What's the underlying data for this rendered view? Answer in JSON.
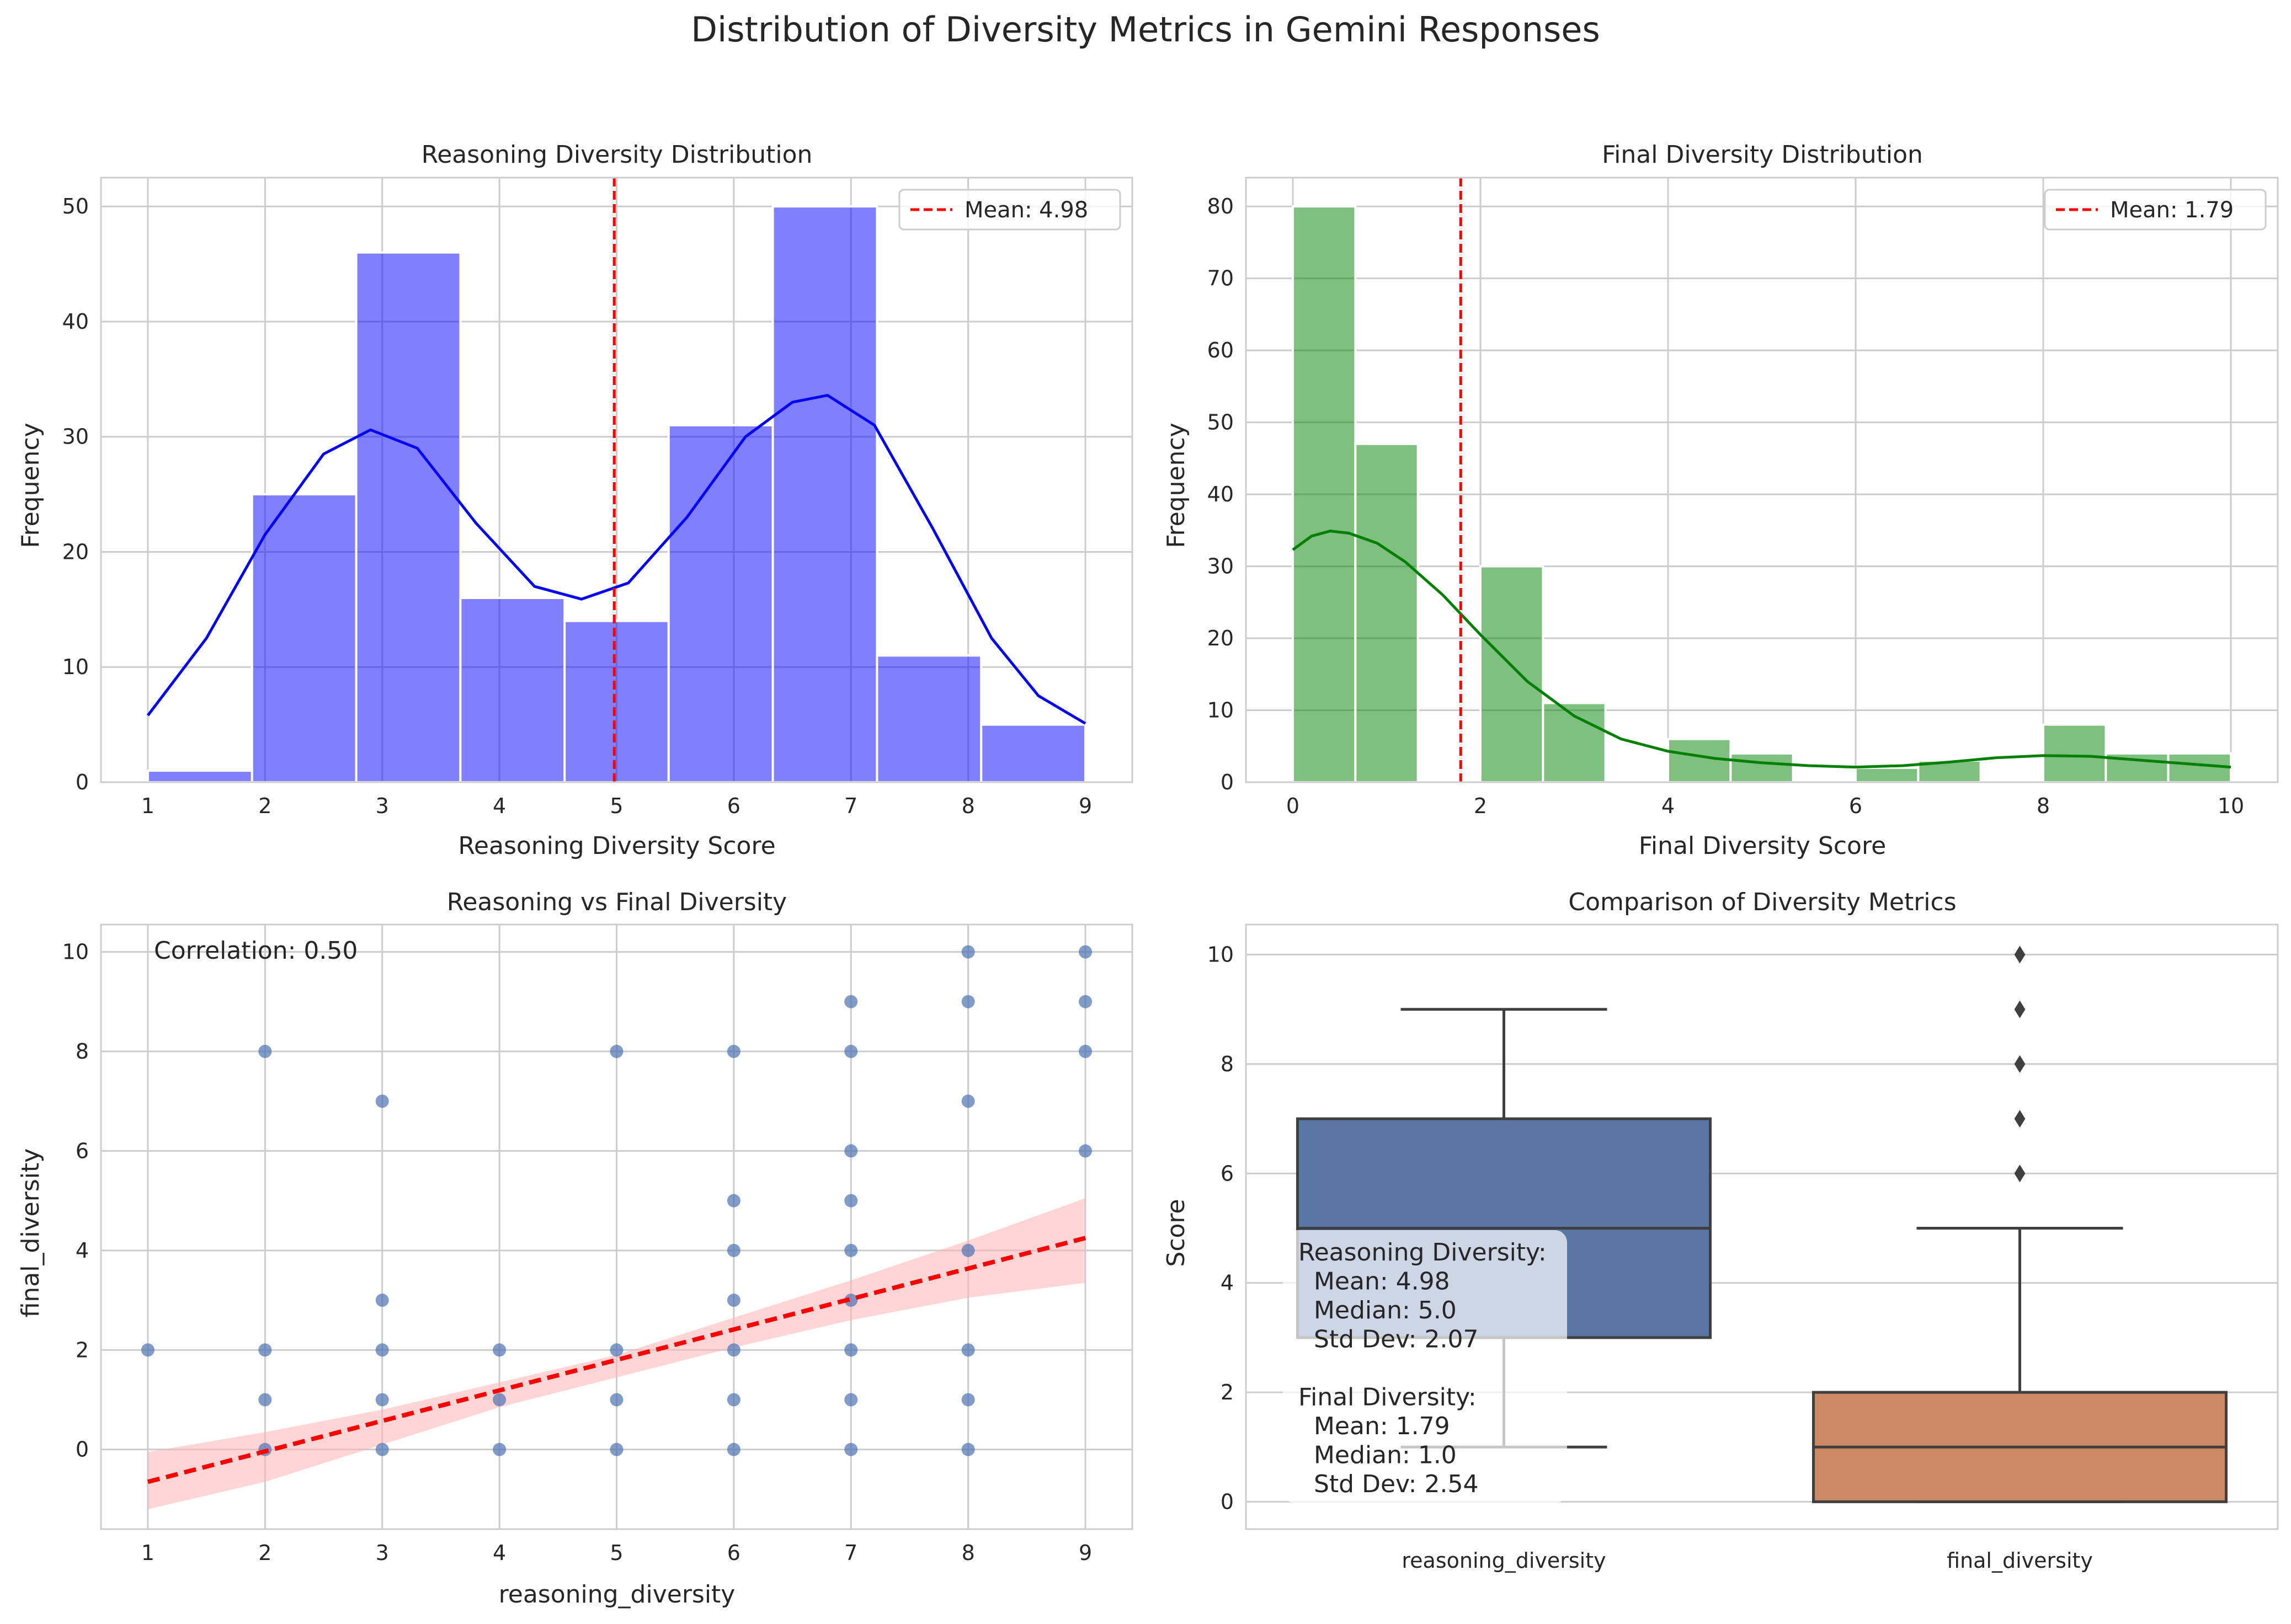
{
  "figure": {
    "title": "Distribution of Diversity Metrics in Gemini Responses"
  },
  "colors": {
    "background": "#ffffff",
    "grid": "#cccccc",
    "spine": "#cccccc",
    "text": "#262626",
    "reasoning_hist": "#0000ff",
    "final_hist": "#008000",
    "mean_line": "#ff0000",
    "scatter_points": "#4c72b0",
    "regression_band": "#ffb3b3",
    "box_reasoning": "#5875a4",
    "box_final": "#cc8963",
    "box_edge": "#3f3f3f"
  },
  "chart_data": [
    {
      "id": "reasoning_hist",
      "type": "bar",
      "title": "Reasoning Diversity Distribution",
      "xlabel": "Reasoning Diversity Score",
      "ylabel": "Frequency",
      "bin_edges": [
        1.0,
        1.889,
        2.778,
        3.667,
        4.556,
        5.444,
        6.333,
        7.222,
        8.111,
        9.0
      ],
      "values": [
        1,
        25,
        46,
        16,
        14,
        31,
        50,
        11,
        5
      ],
      "kde": {
        "x": [
          1.0,
          1.5,
          2.0,
          2.5,
          2.9,
          3.3,
          3.8,
          4.3,
          4.7,
          5.1,
          5.6,
          6.1,
          6.5,
          6.8,
          7.2,
          7.7,
          8.2,
          8.6,
          9.0
        ],
        "y": [
          5.8,
          12.5,
          21.5,
          28.5,
          30.6,
          29.0,
          22.5,
          17.0,
          15.9,
          17.3,
          23.0,
          30.0,
          33.0,
          33.6,
          31.0,
          22.0,
          12.5,
          7.5,
          5.1
        ]
      },
      "mean": 4.98,
      "mean_label": "Mean: 4.98",
      "xlim": [
        0.6,
        9.4
      ],
      "ylim": [
        0,
        52.5
      ],
      "xticks": [
        1,
        2,
        3,
        4,
        5,
        6,
        7,
        8,
        9
      ],
      "yticks": [
        0,
        10,
        20,
        30,
        40,
        50
      ],
      "legend_position": "top-right",
      "grid": true
    },
    {
      "id": "final_hist",
      "type": "bar",
      "title": "Final Diversity Distribution",
      "xlabel": "Final Diversity Score",
      "ylabel": "Frequency",
      "bin_edges": [
        0.0,
        0.667,
        1.333,
        2.0,
        2.667,
        3.333,
        4.0,
        4.667,
        5.333,
        6.0,
        6.667,
        7.333,
        8.0,
        8.667,
        9.333,
        10.0
      ],
      "values": [
        80,
        47,
        0,
        30,
        11,
        0,
        6,
        4,
        0,
        2,
        3,
        0,
        8,
        4,
        4
      ],
      "kde": {
        "x": [
          0.0,
          0.2,
          0.4,
          0.6,
          0.9,
          1.2,
          1.6,
          2.0,
          2.5,
          3.0,
          3.5,
          4.0,
          4.5,
          5.0,
          5.5,
          6.0,
          6.5,
          7.0,
          7.5,
          8.0,
          8.5,
          9.0,
          9.5,
          10.0
        ],
        "y": [
          32.3,
          34.2,
          34.9,
          34.6,
          33.2,
          30.6,
          26.0,
          20.5,
          14.0,
          9.2,
          6.0,
          4.3,
          3.3,
          2.7,
          2.3,
          2.1,
          2.3,
          2.8,
          3.4,
          3.7,
          3.6,
          3.1,
          2.6,
          2.1
        ]
      },
      "mean": 1.79,
      "mean_label": "Mean: 1.79",
      "xlim": [
        -0.5,
        10.5
      ],
      "ylim": [
        0,
        84
      ],
      "xticks": [
        0,
        2,
        4,
        6,
        8,
        10
      ],
      "yticks": [
        0,
        10,
        20,
        30,
        40,
        50,
        60,
        70,
        80
      ],
      "legend_position": "top-right",
      "grid": true
    },
    {
      "id": "scatter",
      "type": "scatter",
      "title": "Reasoning vs Final Diversity",
      "xlabel": "reasoning_diversity",
      "ylabel": "final_diversity",
      "points": [
        [
          1,
          2
        ],
        [
          2,
          0
        ],
        [
          2,
          1
        ],
        [
          2,
          2
        ],
        [
          2,
          8
        ],
        [
          3,
          0
        ],
        [
          3,
          1
        ],
        [
          3,
          2
        ],
        [
          3,
          3
        ],
        [
          3,
          7
        ],
        [
          4,
          0
        ],
        [
          4,
          1
        ],
        [
          4,
          2
        ],
        [
          5,
          0
        ],
        [
          5,
          1
        ],
        [
          5,
          2
        ],
        [
          5,
          8
        ],
        [
          6,
          0
        ],
        [
          6,
          1
        ],
        [
          6,
          2
        ],
        [
          6,
          3
        ],
        [
          6,
          4
        ],
        [
          6,
          5
        ],
        [
          6,
          8
        ],
        [
          7,
          0
        ],
        [
          7,
          1
        ],
        [
          7,
          2
        ],
        [
          7,
          3
        ],
        [
          7,
          4
        ],
        [
          7,
          5
        ],
        [
          7,
          6
        ],
        [
          7,
          8
        ],
        [
          7,
          9
        ],
        [
          8,
          0
        ],
        [
          8,
          1
        ],
        [
          8,
          2
        ],
        [
          8,
          4
        ],
        [
          8,
          7
        ],
        [
          8,
          9
        ],
        [
          8,
          10
        ],
        [
          9,
          6
        ],
        [
          9,
          8
        ],
        [
          9,
          9
        ],
        [
          9,
          10
        ]
      ],
      "regression": {
        "x": [
          1,
          9
        ],
        "y": [
          -0.65,
          4.25
        ]
      },
      "band": {
        "x": [
          1,
          2,
          3,
          4,
          5,
          6,
          7,
          8,
          9
        ],
        "upper": [
          -0.05,
          0.35,
          0.8,
          1.35,
          1.9,
          2.65,
          3.4,
          4.2,
          5.05
        ],
        "lower": [
          -1.2,
          -0.65,
          0.1,
          0.85,
          1.45,
          2.05,
          2.6,
          3.05,
          3.35
        ]
      },
      "annotation": "Correlation: 0.50",
      "xlim": [
        0.6,
        9.4
      ],
      "ylim": [
        -1.6,
        10.55
      ],
      "xticks": [
        1,
        2,
        3,
        4,
        5,
        6,
        7,
        8,
        9
      ],
      "yticks": [
        0,
        2,
        4,
        6,
        8,
        10
      ],
      "grid": true
    },
    {
      "id": "boxplot",
      "type": "box",
      "title": "Comparison of Diversity Metrics",
      "ylabel": "Score",
      "categories": [
        "reasoning_diversity",
        "final_diversity"
      ],
      "boxes": [
        {
          "category": "reasoning_diversity",
          "whisker_low": 1,
          "q1": 3,
          "median": 5,
          "q3": 7,
          "whisker_high": 9,
          "outliers": []
        },
        {
          "category": "final_diversity",
          "whisker_low": 0,
          "q1": 0,
          "median": 1,
          "q3": 2,
          "whisker_high": 5,
          "outliers": [
            6,
            7,
            8,
            9,
            10
          ]
        }
      ],
      "stats_text": [
        "Reasoning Diversity:",
        "  Mean: 4.98",
        "  Median: 5.0",
        "  Std Dev: 2.07",
        "",
        "Final Diversity:",
        "  Mean: 1.79",
        "  Median: 1.0",
        "  Std Dev: 2.54"
      ],
      "ylim": [
        -0.5,
        10.55
      ],
      "yticks": [
        0,
        2,
        4,
        6,
        8,
        10
      ],
      "grid": true
    }
  ]
}
